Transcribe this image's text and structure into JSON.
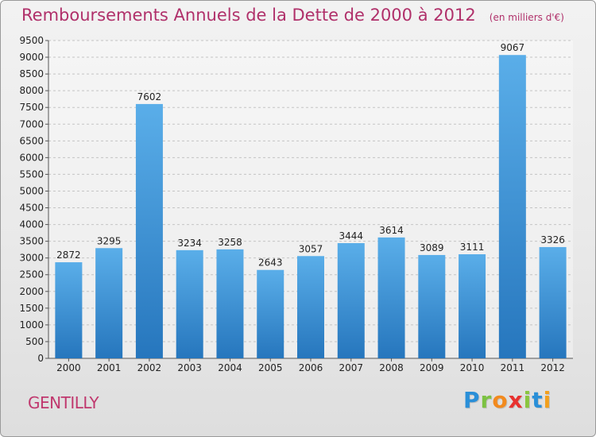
{
  "chart_data": {
    "type": "bar",
    "title": "Remboursements Annuels de la Dette de 2000 à 2012",
    "unit_note": "(en milliers d'€)",
    "categories": [
      "2000",
      "2001",
      "2002",
      "2003",
      "2004",
      "2005",
      "2006",
      "2007",
      "2008",
      "2009",
      "2010",
      "2011",
      "2012"
    ],
    "values": [
      2872,
      3295,
      7602,
      3234,
      3258,
      2643,
      3057,
      3444,
      3614,
      3089,
      3111,
      9067,
      3326
    ],
    "ylim": [
      0,
      9500
    ],
    "yticks": [
      0,
      500,
      1000,
      1500,
      2000,
      2500,
      3000,
      3500,
      4000,
      4500,
      5000,
      5500,
      6000,
      6500,
      7000,
      7500,
      8000,
      8500,
      9000,
      9500
    ],
    "grid": true,
    "bar_color": "#3d95d8"
  },
  "footer": {
    "commune": "GENTILLY",
    "logo": "Proxiti"
  }
}
